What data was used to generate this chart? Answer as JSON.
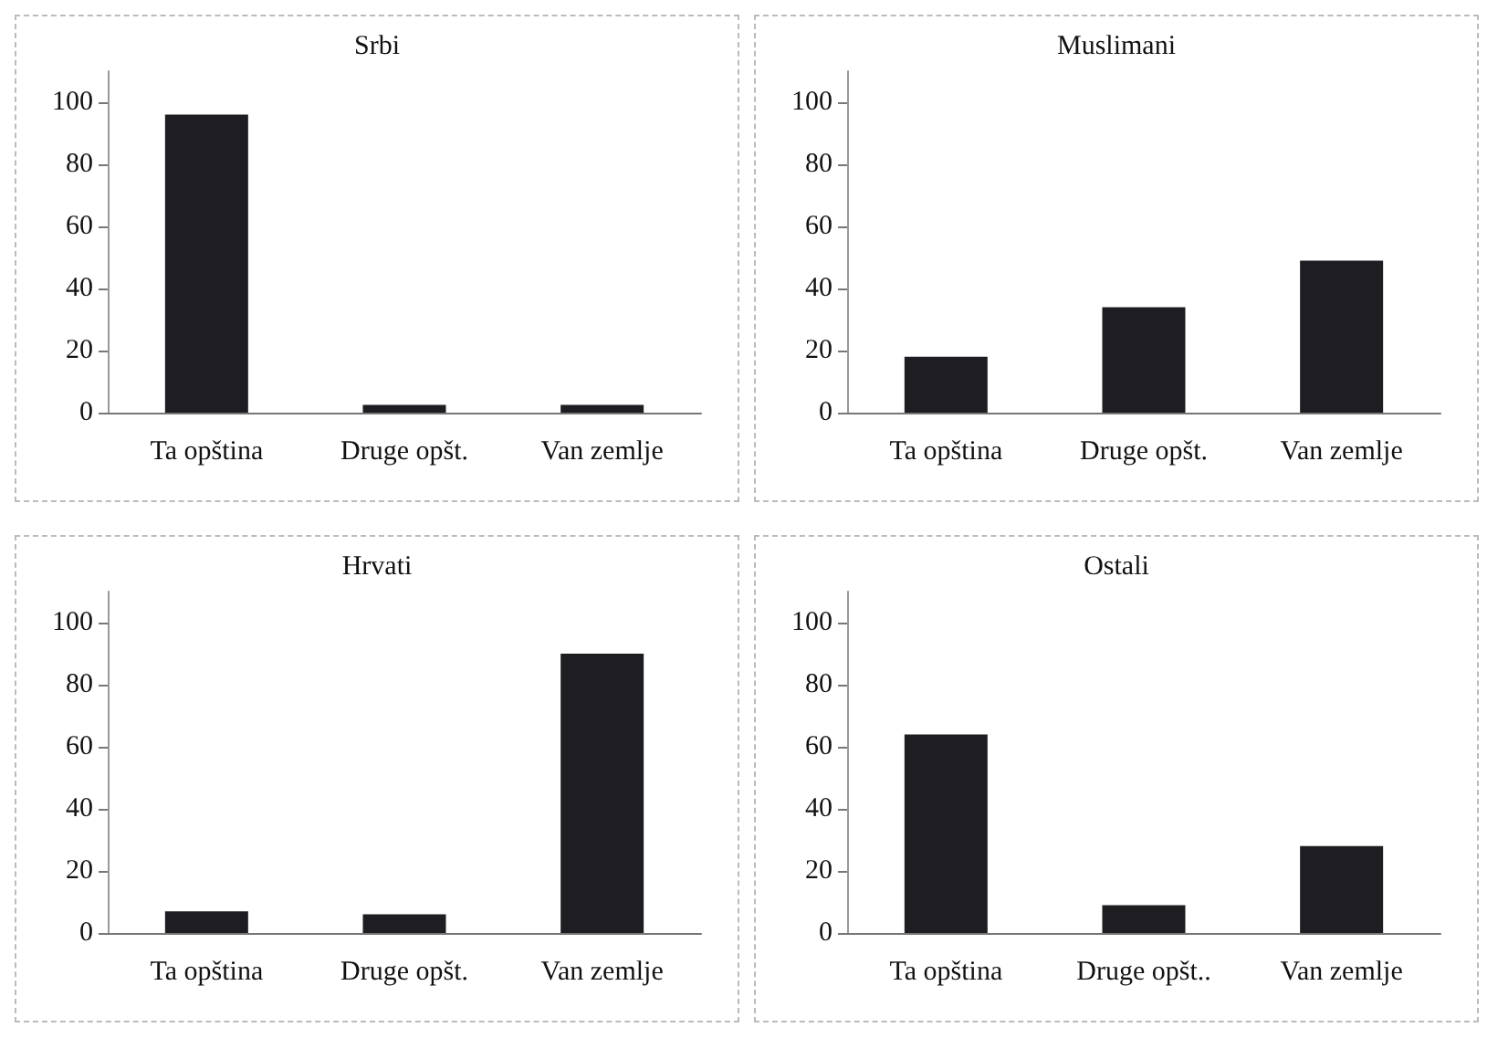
{
  "chart_data": [
    {
      "type": "bar",
      "title": "Srbi",
      "categories": [
        "Ta opština",
        "Druge opšt.",
        "Van zemlje"
      ],
      "values": [
        96,
        2.5,
        2.5
      ],
      "color": "#1e1e22",
      "ylim": [
        0,
        110
      ],
      "yticks": [
        0,
        20,
        40,
        60,
        80,
        100
      ],
      "grid": false
    },
    {
      "type": "bar",
      "title": "Muslimani",
      "categories": [
        "Ta opština",
        "Druge opšt.",
        "Van zemlje"
      ],
      "values": [
        18,
        34,
        49
      ],
      "color": "#1e1e22",
      "ylim": [
        0,
        110
      ],
      "yticks": [
        0,
        20,
        40,
        60,
        80,
        100
      ],
      "grid": false
    },
    {
      "type": "bar",
      "title": "Hrvati",
      "categories": [
        "Ta opština",
        "Druge opšt.",
        "Van zemlje"
      ],
      "values": [
        7,
        6,
        90
      ],
      "color": "#1e1e22",
      "ylim": [
        0,
        110
      ],
      "yticks": [
        0,
        20,
        40,
        60,
        80,
        100
      ],
      "grid": false
    },
    {
      "type": "bar",
      "title": "Ostali",
      "categories": [
        "Ta opština",
        "Druge opšt..",
        "Van zemlje"
      ],
      "values": [
        64,
        9,
        28
      ],
      "color": "#1e1e22",
      "ylim": [
        0,
        110
      ],
      "yticks": [
        0,
        20,
        40,
        60,
        80,
        100
      ],
      "grid": false
    }
  ]
}
